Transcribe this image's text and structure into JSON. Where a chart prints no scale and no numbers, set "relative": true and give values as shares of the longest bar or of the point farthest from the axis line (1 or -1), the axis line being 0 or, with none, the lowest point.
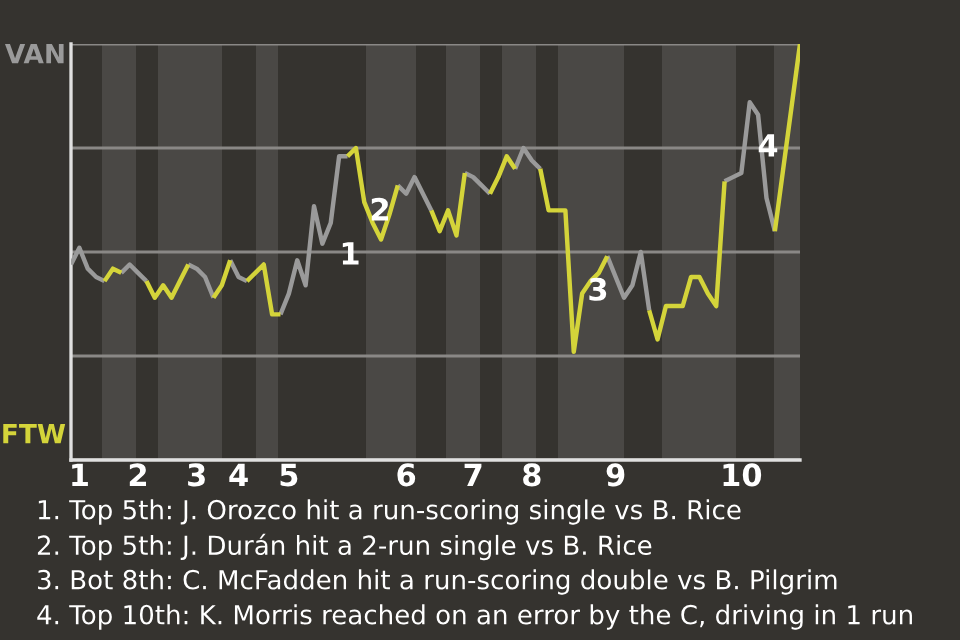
{
  "chart_data": {
    "type": "line",
    "relative": true,
    "categories": [
      null,
      "1",
      null,
      null,
      null,
      null,
      null,
      null,
      "2",
      null,
      null,
      null,
      null,
      null,
      null,
      "3",
      null,
      null,
      null,
      null,
      "4",
      null,
      null,
      null,
      null,
      null,
      "5",
      null,
      null,
      null,
      null,
      null,
      null,
      null,
      null,
      null,
      null,
      null,
      null,
      null,
      "6",
      null,
      null,
      null,
      null,
      null,
      null,
      null,
      "7",
      null,
      null,
      null,
      null,
      null,
      null,
      "8",
      null,
      null,
      null,
      null,
      null,
      null,
      null,
      null,
      null,
      "9",
      null,
      null,
      null,
      null,
      null,
      null,
      null,
      null,
      null,
      null,
      null,
      null,
      null,
      null,
      "10",
      null,
      null,
      null,
      null,
      null,
      null,
      null
    ],
    "grid": "y",
    "marker": "none",
    "series": [
      {
        "color": "#9a9a9a",
        "values": [
          0.47,
          0.51,
          0.46,
          0.44,
          0.43,
          null,
          0.45,
          0.47,
          0.45,
          0.43,
          null,
          null,
          null,
          null,
          0.47,
          0.46,
          0.44,
          0.39,
          null,
          0.48,
          0.44,
          0.43,
          null,
          null,
          null,
          0.35,
          0.4,
          0.48,
          0.42,
          0.61,
          0.52,
          0.57,
          0.73,
          0.73,
          null,
          null,
          null,
          null,
          null,
          0.66,
          0.64,
          0.68,
          0.64,
          0.6,
          null,
          null,
          null,
          0.69,
          0.68,
          0.66,
          0.64,
          null,
          null,
          0.7,
          0.75,
          0.72,
          0.7,
          null,
          null,
          null,
          null,
          null,
          null,
          null,
          0.49,
          0.44,
          0.39,
          0.42,
          0.5,
          0.36,
          null,
          null,
          null,
          null,
          null,
          null,
          null,
          null,
          0.67,
          0.68,
          0.69,
          0.86,
          0.83,
          0.63,
          0.55,
          null,
          null,
          null
        ]
      },
      {
        "color": "#d4d43a",
        "values": [
          null,
          null,
          null,
          null,
          0.43,
          0.46,
          0.45,
          null,
          null,
          0.43,
          0.39,
          0.42,
          0.39,
          0.43,
          0.47,
          null,
          null,
          0.39,
          0.42,
          0.48,
          null,
          0.43,
          0.45,
          0.47,
          0.35,
          0.35,
          null,
          null,
          null,
          null,
          null,
          null,
          null,
          0.73,
          0.75,
          0.62,
          0.57,
          0.53,
          0.59,
          0.66,
          null,
          null,
          null,
          0.6,
          0.55,
          0.6,
          0.54,
          0.69,
          null,
          null,
          0.64,
          0.68,
          0.73,
          0.7,
          null,
          null,
          0.7,
          0.6,
          0.6,
          0.6,
          0.26,
          0.4,
          0.43,
          0.45,
          0.49,
          null,
          null,
          null,
          null,
          0.36,
          0.29,
          0.37,
          0.37,
          0.37,
          0.44,
          0.44,
          0.4,
          0.37,
          0.67,
          null,
          null,
          null,
          null,
          null,
          0.55,
          0.7,
          0.85,
          1
        ]
      }
    ],
    "annotations": [
      "VAN",
      "FTW",
      "1",
      "2",
      "3",
      "4",
      "1. Top 5th: J. Orozco hit a run-scoring single vs B. Rice",
      "2. Top 5th: J. Durán hit a 2-run single vs B. Rice",
      "3. Bot 8th: C. McFadden hit a run-scoring double vs B. Pilgrim",
      "4. Top 10th: K. Morris reached on an error by the C, driving in 1 run"
    ]
  }
}
